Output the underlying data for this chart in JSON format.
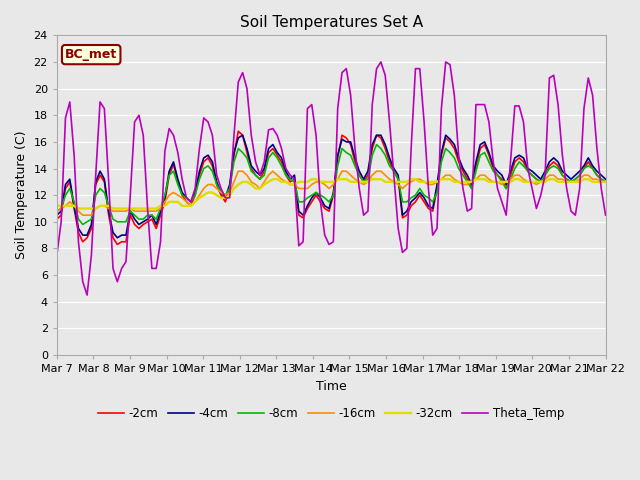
{
  "title": "Soil Temperatures Set A",
  "xlabel": "Time",
  "ylabel": "Soil Temperature (C)",
  "ylim": [
    0,
    24
  ],
  "yticks": [
    0,
    2,
    4,
    6,
    8,
    10,
    12,
    14,
    16,
    18,
    20,
    22,
    24
  ],
  "bg_color": "#e8e8e8",
  "annotation_text": "BC_met",
  "annotation_color": "#8B0000",
  "annotation_bg": "#ffffe0",
  "series_colors": {
    "neg2cm": "#ff0000",
    "neg4cm": "#00008B",
    "neg8cm": "#00bb00",
    "neg16cm": "#ff8c00",
    "neg32cm": "#dddd00",
    "theta": "#bb00bb"
  },
  "series_labels": {
    "neg2cm": "-2cm",
    "neg4cm": "-4cm",
    "neg8cm": "-8cm",
    "neg16cm": "-16cm",
    "neg32cm": "-32cm",
    "theta": "Theta_Temp"
  },
  "x_tick_labels": [
    "Mar 7",
    "Mar 8",
    "Mar 9",
    "Mar 10",
    "Mar 11",
    "Mar 12",
    "Mar 13",
    "Mar 14",
    "Mar 15",
    "Mar 16",
    "Mar 17",
    "Mar 18",
    "Mar 19",
    "Mar 20",
    "Mar 21",
    "Mar 22"
  ],
  "n_days": 16,
  "pts_per_day": 8,
  "neg2cm_y": [
    10.2,
    10.5,
    12.5,
    13.0,
    11.0,
    9.2,
    8.5,
    8.8,
    9.5,
    12.8,
    13.5,
    13.0,
    10.5,
    8.8,
    8.3,
    8.5,
    8.5,
    10.5,
    9.8,
    9.5,
    9.8,
    10.0,
    10.2,
    9.5,
    10.5,
    11.5,
    13.5,
    14.3,
    13.0,
    12.0,
    11.5,
    11.2,
    12.0,
    13.5,
    14.5,
    14.8,
    14.2,
    12.8,
    12.0,
    11.5,
    12.5,
    15.0,
    16.8,
    16.5,
    15.2,
    14.0,
    13.5,
    13.2,
    13.8,
    15.2,
    15.5,
    15.0,
    14.5,
    13.5,
    13.0,
    13.2,
    10.5,
    10.3,
    11.0,
    11.5,
    12.0,
    11.5,
    11.0,
    10.8,
    12.0,
    14.8,
    16.5,
    16.3,
    15.8,
    14.5,
    13.5,
    13.0,
    13.5,
    15.5,
    16.5,
    16.3,
    15.5,
    14.5,
    13.8,
    13.2,
    10.3,
    10.5,
    11.2,
    11.5,
    12.0,
    11.5,
    11.0,
    10.8,
    12.5,
    15.0,
    16.3,
    16.0,
    15.5,
    14.5,
    13.8,
    13.2,
    12.5,
    14.2,
    15.5,
    15.8,
    15.0,
    14.0,
    13.5,
    13.2,
    12.5,
    13.5,
    14.5,
    14.8,
    14.5,
    13.8,
    13.5,
    13.2,
    13.0,
    13.5,
    14.2,
    14.5,
    14.2,
    13.5,
    13.2,
    13.0,
    13.2,
    13.5,
    14.0,
    14.5,
    14.0,
    13.5,
    13.2,
    13.0
  ],
  "neg4cm_y": [
    10.5,
    10.8,
    12.8,
    13.2,
    11.2,
    9.5,
    9.0,
    9.0,
    9.8,
    13.0,
    13.8,
    13.2,
    10.8,
    9.2,
    8.8,
    9.0,
    9.0,
    10.8,
    10.2,
    9.8,
    10.0,
    10.2,
    10.5,
    9.8,
    10.8,
    11.8,
    13.8,
    14.5,
    13.2,
    12.2,
    11.8,
    11.5,
    12.2,
    13.8,
    14.8,
    15.0,
    14.5,
    13.0,
    12.2,
    11.8,
    12.8,
    15.2,
    16.3,
    16.5,
    15.5,
    14.2,
    13.8,
    13.5,
    14.0,
    15.5,
    15.8,
    15.2,
    14.8,
    13.8,
    13.2,
    13.5,
    10.8,
    10.5,
    11.2,
    11.8,
    12.2,
    11.8,
    11.2,
    11.0,
    12.2,
    15.0,
    16.2,
    16.0,
    16.0,
    14.8,
    13.8,
    13.2,
    13.8,
    15.8,
    16.5,
    16.5,
    15.8,
    14.8,
    14.0,
    13.5,
    10.5,
    10.8,
    11.5,
    11.8,
    12.2,
    11.8,
    11.2,
    11.0,
    12.8,
    15.2,
    16.5,
    16.2,
    15.8,
    14.8,
    14.0,
    13.5,
    12.8,
    14.5,
    15.8,
    16.0,
    15.2,
    14.2,
    13.8,
    13.5,
    12.8,
    13.8,
    14.8,
    15.0,
    14.8,
    14.0,
    13.8,
    13.5,
    13.2,
    13.8,
    14.5,
    14.8,
    14.5,
    13.8,
    13.5,
    13.2,
    13.5,
    13.8,
    14.2,
    14.8,
    14.2,
    13.8,
    13.5,
    13.2
  ],
  "neg8cm_y": [
    10.8,
    11.0,
    12.0,
    12.5,
    11.5,
    10.2,
    9.8,
    10.0,
    10.2,
    12.0,
    12.5,
    12.2,
    11.2,
    10.2,
    10.0,
    10.0,
    10.0,
    10.8,
    10.5,
    10.2,
    10.2,
    10.5,
    10.5,
    10.2,
    11.0,
    12.0,
    13.5,
    13.8,
    12.8,
    12.0,
    11.8,
    11.5,
    12.0,
    13.2,
    14.0,
    14.2,
    13.8,
    12.8,
    12.2,
    12.0,
    12.5,
    14.5,
    15.5,
    15.2,
    14.8,
    13.8,
    13.5,
    13.2,
    13.5,
    14.8,
    15.2,
    14.8,
    14.2,
    13.5,
    13.2,
    13.0,
    11.5,
    11.5,
    11.8,
    12.0,
    12.2,
    12.0,
    11.8,
    11.5,
    12.0,
    14.2,
    15.5,
    15.2,
    15.0,
    14.2,
    13.5,
    13.0,
    13.2,
    15.0,
    15.8,
    15.5,
    15.0,
    14.2,
    13.8,
    13.2,
    11.5,
    11.5,
    11.8,
    12.0,
    12.5,
    12.0,
    11.8,
    11.5,
    12.2,
    14.5,
    15.5,
    15.2,
    14.8,
    14.0,
    13.5,
    13.0,
    12.5,
    13.8,
    15.0,
    15.2,
    14.5,
    13.8,
    13.5,
    13.0,
    12.5,
    13.2,
    14.0,
    14.5,
    14.2,
    13.8,
    13.5,
    13.2,
    13.0,
    13.5,
    14.0,
    14.2,
    14.0,
    13.5,
    13.2,
    13.0,
    13.2,
    13.5,
    14.0,
    14.2,
    14.0,
    13.5,
    13.2,
    13.0
  ],
  "neg16cm_y": [
    10.8,
    11.0,
    11.2,
    11.5,
    11.2,
    10.8,
    10.5,
    10.5,
    10.5,
    11.0,
    11.2,
    11.2,
    11.0,
    10.8,
    10.8,
    10.8,
    10.8,
    11.0,
    10.8,
    10.8,
    10.8,
    10.8,
    10.8,
    10.8,
    11.0,
    11.5,
    12.0,
    12.2,
    12.0,
    11.8,
    11.5,
    11.2,
    11.5,
    12.0,
    12.5,
    12.8,
    12.8,
    12.5,
    12.2,
    12.0,
    12.2,
    13.0,
    13.8,
    13.8,
    13.5,
    13.0,
    12.8,
    12.5,
    13.0,
    13.5,
    13.8,
    13.5,
    13.2,
    13.0,
    12.8,
    12.8,
    12.5,
    12.5,
    12.5,
    12.8,
    13.0,
    13.0,
    12.8,
    12.5,
    12.8,
    13.2,
    13.8,
    13.8,
    13.5,
    13.2,
    13.0,
    12.8,
    13.0,
    13.5,
    13.8,
    13.8,
    13.5,
    13.2,
    13.0,
    12.8,
    12.5,
    12.8,
    13.0,
    13.2,
    13.2,
    13.0,
    12.8,
    12.8,
    13.0,
    13.2,
    13.5,
    13.5,
    13.2,
    13.0,
    12.8,
    12.8,
    13.0,
    13.2,
    13.5,
    13.5,
    13.2,
    13.0,
    13.0,
    12.8,
    13.0,
    13.2,
    13.5,
    13.5,
    13.2,
    13.0,
    13.0,
    12.8,
    13.0,
    13.2,
    13.5,
    13.5,
    13.2,
    13.2,
    13.0,
    13.0,
    13.0,
    13.2,
    13.5,
    13.5,
    13.2,
    13.2,
    13.0,
    13.0
  ],
  "neg32cm_y": [
    11.2,
    11.2,
    11.2,
    11.2,
    11.2,
    11.0,
    11.0,
    11.0,
    11.0,
    11.0,
    11.2,
    11.2,
    11.2,
    11.0,
    11.0,
    11.0,
    11.0,
    11.0,
    11.0,
    11.0,
    11.0,
    11.0,
    11.0,
    11.0,
    11.2,
    11.2,
    11.5,
    11.5,
    11.5,
    11.2,
    11.2,
    11.2,
    11.5,
    11.8,
    12.0,
    12.2,
    12.2,
    12.0,
    11.8,
    11.8,
    12.0,
    12.5,
    12.8,
    13.0,
    13.0,
    12.8,
    12.5,
    12.5,
    12.8,
    13.0,
    13.2,
    13.2,
    13.0,
    13.0,
    12.8,
    12.8,
    13.0,
    13.0,
    13.0,
    13.2,
    13.2,
    13.0,
    13.0,
    13.0,
    13.0,
    13.2,
    13.2,
    13.2,
    13.0,
    13.0,
    13.0,
    13.0,
    13.0,
    13.2,
    13.2,
    13.2,
    13.0,
    13.0,
    13.0,
    13.0,
    13.0,
    13.0,
    13.2,
    13.2,
    13.0,
    13.0,
    13.0,
    13.0,
    13.0,
    13.2,
    13.2,
    13.2,
    13.0,
    13.0,
    13.0,
    13.0,
    13.0,
    13.2,
    13.2,
    13.2,
    13.0,
    13.0,
    13.0,
    13.0,
    13.0,
    13.0,
    13.2,
    13.2,
    13.0,
    13.0,
    13.0,
    13.0,
    13.0,
    13.0,
    13.2,
    13.2,
    13.0,
    13.0,
    13.0,
    13.0,
    13.0,
    13.0,
    13.2,
    13.2,
    13.0,
    13.0,
    13.0,
    13.0
  ],
  "theta_y": [
    7.5,
    10.0,
    17.8,
    19.0,
    15.0,
    8.5,
    5.5,
    4.5,
    7.5,
    13.5,
    19.0,
    18.5,
    13.0,
    6.5,
    5.5,
    6.5,
    7.0,
    12.0,
    17.5,
    18.0,
    16.5,
    11.0,
    6.5,
    6.5,
    8.5,
    15.3,
    17.0,
    16.5,
    15.2,
    13.2,
    11.8,
    11.5,
    12.5,
    15.5,
    17.8,
    17.5,
    16.5,
    13.5,
    12.5,
    11.8,
    11.8,
    16.5,
    20.5,
    21.2,
    20.0,
    16.5,
    14.5,
    13.5,
    14.5,
    16.9,
    17.0,
    16.5,
    15.5,
    14.0,
    13.5,
    13.2,
    8.2,
    8.5,
    18.5,
    18.8,
    16.5,
    11.5,
    9.0,
    8.3,
    8.5,
    18.5,
    21.2,
    21.5,
    19.5,
    15.5,
    12.5,
    10.5,
    10.8,
    18.8,
    21.5,
    22.0,
    21.0,
    17.5,
    13.5,
    9.5,
    7.7,
    8.0,
    15.5,
    21.5,
    21.5,
    17.5,
    12.5,
    9.0,
    9.5,
    18.5,
    22.0,
    21.8,
    19.5,
    15.0,
    12.5,
    10.8,
    11.0,
    18.8,
    18.8,
    18.8,
    17.5,
    14.5,
    12.5,
    11.5,
    10.5,
    14.5,
    18.7,
    18.7,
    17.5,
    14.0,
    12.5,
    11.0,
    12.0,
    13.5,
    20.8,
    21.0,
    18.8,
    15.0,
    12.5,
    10.8,
    10.5,
    12.5,
    18.5,
    20.8,
    19.5,
    15.5,
    12.5,
    10.5
  ]
}
